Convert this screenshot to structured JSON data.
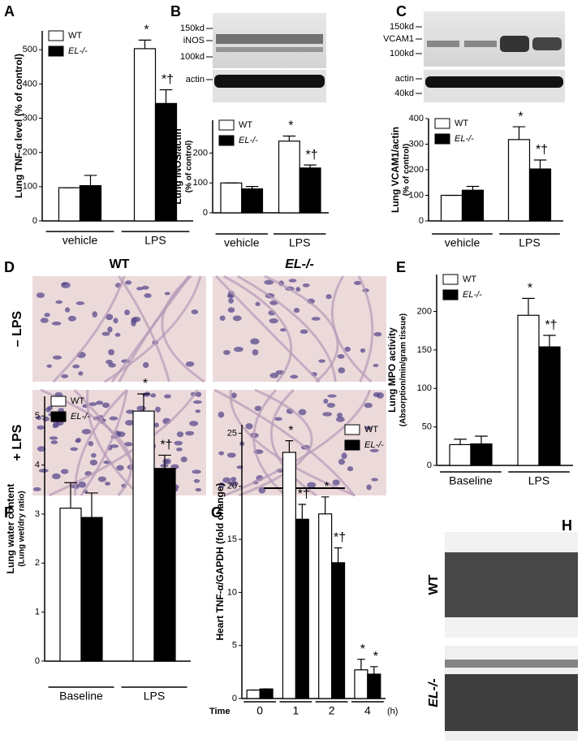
{
  "panels": [
    "A",
    "B",
    "C",
    "D",
    "E",
    "F",
    "G",
    "H"
  ],
  "blots": [
    {
      "markers": [
        "150kd",
        "iNOS",
        "100kd"
      ],
      "loading": [
        "actin"
      ]
    },
    {
      "markers": [
        "150kd",
        "VCAM1",
        "100kd"
      ],
      "loading": [
        "actin",
        "40kd"
      ]
    }
  ],
  "micrographs": {
    "columns": [
      "WT",
      "EL-/-"
    ],
    "rows": [
      "– LPS",
      "+ LPS"
    ]
  },
  "echo": {
    "rows": [
      "WT",
      "EL-/-"
    ]
  },
  "chart_data": [
    {
      "type": "bar",
      "ylabel": [
        "Lung TNF-α level (% of control)"
      ],
      "categories": [
        "vehicle",
        "LPS"
      ],
      "series": [
        {
          "name": "WT",
          "color": "#ffffff",
          "values": [
            97,
            503
          ],
          "errors": [
            0,
            25
          ],
          "annotations": [
            null,
            "*"
          ]
        },
        {
          "name": "EL-/-",
          "color": "#000000",
          "values": [
            103,
            343
          ],
          "errors": [
            30,
            40
          ],
          "annotations": [
            null,
            "*†"
          ]
        }
      ],
      "ylim": [
        0,
        555
      ],
      "yticks": [
        0,
        100,
        200,
        300,
        400,
        500
      ],
      "legend": "upper left"
    },
    {
      "type": "bar",
      "ylabel": [
        "Lung iNOS/actin",
        "(% of control)"
      ],
      "categories": [
        "vehicle",
        "LPS"
      ],
      "series": [
        {
          "name": "WT",
          "color": "#ffffff",
          "values": [
            100,
            240
          ],
          "errors": [
            0,
            17
          ],
          "annotations": [
            null,
            "*"
          ]
        },
        {
          "name": "EL-/-",
          "color": "#000000",
          "values": [
            80,
            150
          ],
          "errors": [
            8,
            10
          ],
          "annotations": [
            null,
            "*†"
          ]
        }
      ],
      "ylim": [
        0,
        310
      ],
      "yticks": [
        0,
        100,
        200
      ],
      "legend": "upper left"
    },
    {
      "type": "bar",
      "ylabel": [
        "Lung VCAM1/actin",
        "(% of control)"
      ],
      "categories": [
        "vehicle",
        "LPS"
      ],
      "series": [
        {
          "name": "WT",
          "color": "#ffffff",
          "values": [
            100,
            318
          ],
          "errors": [
            0,
            50
          ],
          "annotations": [
            null,
            "*"
          ]
        },
        {
          "name": "EL-/-",
          "color": "#000000",
          "values": [
            120,
            203
          ],
          "errors": [
            15,
            35
          ],
          "annotations": [
            null,
            "*†"
          ]
        }
      ],
      "ylim": [
        0,
        400
      ],
      "yticks": [
        0,
        100,
        200,
        300,
        400
      ],
      "legend": "upper left"
    },
    {
      "type": "bar",
      "ylabel": [
        "Lung MPO activity",
        "(Absorption/min/gram tissue)"
      ],
      "categories": [
        "Baseline",
        "LPS"
      ],
      "series": [
        {
          "name": "WT",
          "color": "#ffffff",
          "values": [
            27,
            195
          ],
          "errors": [
            7,
            22
          ],
          "annotations": [
            null,
            "*"
          ]
        },
        {
          "name": "EL-/-",
          "color": "#000000",
          "values": [
            28,
            154
          ],
          "errors": [
            10,
            15
          ],
          "annotations": [
            null,
            "*†"
          ]
        }
      ],
      "ylim": [
        0,
        248
      ],
      "yticks": [
        0,
        50,
        100,
        150,
        200
      ],
      "legend": "upper left"
    },
    {
      "type": "bar",
      "ylabel": [
        "Lung water content",
        "(Lung wet/dry ratio)"
      ],
      "categories": [
        "Baseline",
        "LPS"
      ],
      "series": [
        {
          "name": "WT",
          "color": "#ffffff",
          "values": [
            3.12,
            5.1
          ],
          "errors": [
            0.52,
            0.35
          ],
          "annotations": [
            null,
            "*"
          ]
        },
        {
          "name": "EL-/-",
          "color": "#000000",
          "values": [
            2.93,
            3.93
          ],
          "errors": [
            0.5,
            0.27
          ],
          "annotations": [
            null,
            "*†"
          ]
        }
      ],
      "ylim": [
        0,
        5.4
      ],
      "yticks": [
        0,
        1,
        2,
        3,
        4,
        5
      ],
      "legend": "upper left"
    },
    {
      "type": "bar",
      "ylabel": [
        "Heart TNF-α/GAPDH (fold change)"
      ],
      "xlabel": "Time",
      "xunit": "(h)",
      "categories": [
        "0",
        "1",
        "2",
        "4"
      ],
      "series": [
        {
          "name": "WT",
          "color": "#ffffff",
          "values": [
            0.8,
            23.2,
            17.4,
            2.7
          ],
          "errors": [
            0,
            1.1,
            1.6,
            1.0
          ],
          "annotations": [
            null,
            "*",
            "*",
            "*"
          ]
        },
        {
          "name": "EL-/-",
          "color": "#000000",
          "values": [
            0.9,
            16.9,
            12.8,
            2.3
          ],
          "errors": [
            0,
            1.4,
            1.4,
            0.7
          ],
          "annotations": [
            null,
            "*†",
            "*†",
            "*"
          ]
        }
      ],
      "ylim": [
        0,
        25.8
      ],
      "yticks": [
        0,
        5,
        10,
        15,
        20,
        25
      ],
      "legend": "upper right"
    }
  ]
}
